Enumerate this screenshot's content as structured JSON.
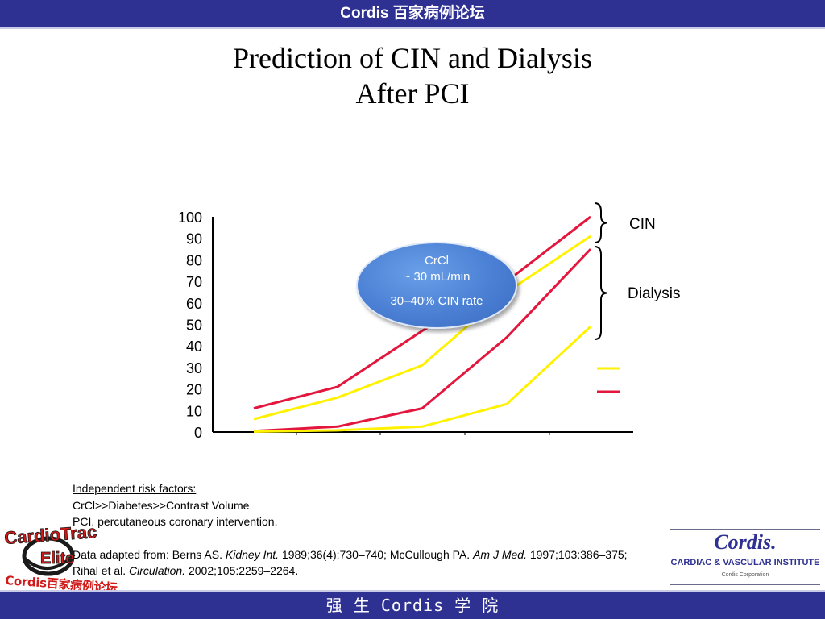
{
  "header": {
    "title": "Cordis 百家病例论坛"
  },
  "slide": {
    "title_line1": "Prediction of CIN and Dialysis",
    "title_line2": "After PCI"
  },
  "callout": {
    "line1": "CrCl",
    "line2": "~ 30 mL/min",
    "line3": "30–40% CIN rate"
  },
  "chart_data": {
    "type": "line",
    "ylim": [
      0,
      100
    ],
    "y_ticks": [
      "100",
      "90",
      "80",
      "70",
      "60",
      "50",
      "40",
      "30",
      "20",
      "10",
      "0"
    ],
    "x": [
      1,
      2,
      3,
      4,
      5
    ],
    "series": [
      {
        "color": "#e3173d",
        "values": [
          11,
          21,
          47,
          70,
          100
        ]
      },
      {
        "color": "#fff200",
        "values": [
          6,
          16,
          31,
          65,
          91
        ]
      },
      {
        "color": "#e3173d",
        "values": [
          0.5,
          2.5,
          11,
          44,
          85
        ]
      },
      {
        "color": "#fff200",
        "values": [
          0.2,
          0.8,
          2.5,
          13,
          49
        ]
      }
    ],
    "brace_labels": {
      "cin": "CIN",
      "dialysis": "Dialysis"
    },
    "legend_swatches": [
      "#fff200",
      "#e3173d"
    ]
  },
  "notes": {
    "heading": "Independent risk factors:",
    "line1": "CrCl>>Diabetes>>Contrast Volume",
    "line2": "PCI,  percutaneous coronary intervention.",
    "ref1_a": "Data adapted from: Berns AS. ",
    "ref1_b": "Kidney Int.",
    "ref1_c": " 1989;36(4):730–740; McCullough PA. ",
    "ref1_d": "Am J Med.",
    "ref1_e": " 1997;103:386–375;",
    "ref2_a": "Rihal et al. ",
    "ref2_b": "Circulation.",
    "ref2_c": " 2002;105:2259–2264."
  },
  "logos": {
    "left_line1": "CardioTrac",
    "left_line2": "Elite",
    "left_line3": "Cordis百家病例论坛",
    "right_brand": "Cordis.",
    "right_institute": "CARDIAC & VASCULAR INSTITUTE",
    "right_corp": "Cordis Corporation"
  },
  "footer": {
    "title": "强 生 Cordis 学 院"
  }
}
